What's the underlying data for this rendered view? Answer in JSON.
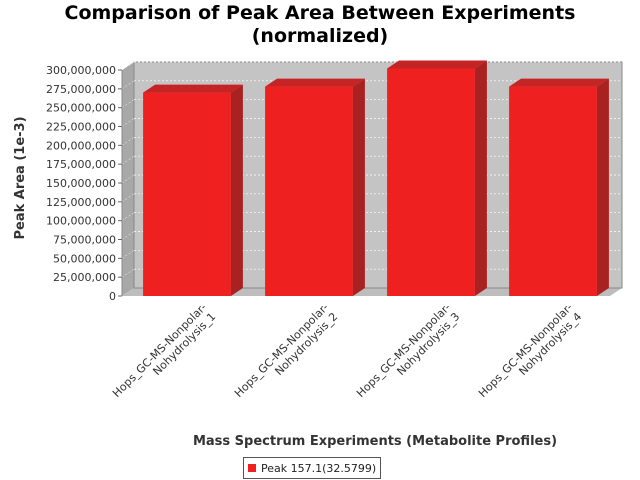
{
  "title_line1": "Comparison of Peak Area Between Experiments",
  "title_line2": "(normalized)",
  "chart_data": {
    "type": "bar",
    "title": "Comparison of Peak Area Between Experiments (normalized)",
    "xlabel": "Mass Spectrum Experiments (Metabolite Profiles)",
    "ylabel": "Peak Area (1e-3)",
    "ylim": [
      0,
      300000000
    ],
    "yticks": [
      0,
      25000000,
      50000000,
      75000000,
      100000000,
      125000000,
      150000000,
      175000000,
      200000000,
      225000000,
      250000000,
      275000000,
      300000000
    ],
    "ytick_labels": [
      "0",
      "25,000,000",
      "50,000,000",
      "75,000,000",
      "100,000,000",
      "125,000,000",
      "150,000,000",
      "175,000,000",
      "200,000,000",
      "225,000,000",
      "250,000,000",
      "275,000,000",
      "300,000,000"
    ],
    "categories": [
      [
        "Hops_GC-MS-Nonpolar-",
        "Nohydrolysis_1"
      ],
      [
        "Hops_GC-MS-Nonpolar-",
        "Nohydrolysis_2"
      ],
      [
        "Hops_GC-MS-Nonpolar-",
        "Nohydrolysis_3"
      ],
      [
        "Hops_GC-MS-Nonpolar-",
        "Nohydrolysis_4"
      ]
    ],
    "series": [
      {
        "name": "Peak 157.1(32.5799)",
        "color": "#ee2020",
        "values": [
          270000000,
          278000000,
          302000000,
          278000000
        ]
      }
    ],
    "grid": true,
    "legend": "bottom-center",
    "style": "3d-bar"
  }
}
